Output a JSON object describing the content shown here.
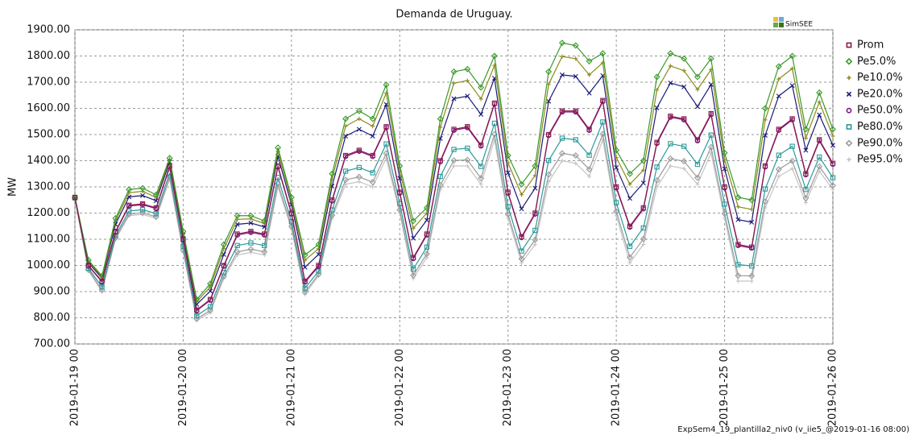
{
  "chart_data": {
    "type": "line",
    "title": "Demanda de Uruguay.",
    "ylabel": "MW",
    "logo": "SimSEE",
    "footer": "ExpSem4_19_plantilla2_niv0 (v_iie5_@2019-01-16 08:00)",
    "grid": true,
    "legend": "right",
    "x": [
      "2019-01-19 00",
      "2019-01-19 03",
      "2019-01-19 06",
      "2019-01-19 09",
      "2019-01-19 12",
      "2019-01-19 15",
      "2019-01-19 18",
      "2019-01-19 21",
      "2019-01-20 00",
      "2019-01-20 03",
      "2019-01-20 06",
      "2019-01-20 09",
      "2019-01-20 12",
      "2019-01-20 15",
      "2019-01-20 18",
      "2019-01-20 21",
      "2019-01-21 00",
      "2019-01-21 03",
      "2019-01-21 06",
      "2019-01-21 09",
      "2019-01-21 12",
      "2019-01-21 15",
      "2019-01-21 18",
      "2019-01-21 21",
      "2019-01-22 00",
      "2019-01-22 03",
      "2019-01-22 06",
      "2019-01-22 09",
      "2019-01-22 12",
      "2019-01-22 15",
      "2019-01-22 18",
      "2019-01-22 21",
      "2019-01-23 00",
      "2019-01-23 03",
      "2019-01-23 06",
      "2019-01-23 09",
      "2019-01-23 12",
      "2019-01-23 15",
      "2019-01-23 18",
      "2019-01-23 21",
      "2019-01-24 00",
      "2019-01-24 03",
      "2019-01-24 06",
      "2019-01-24 09",
      "2019-01-24 12",
      "2019-01-24 15",
      "2019-01-24 18",
      "2019-01-24 21",
      "2019-01-25 00",
      "2019-01-25 03",
      "2019-01-25 06",
      "2019-01-25 09",
      "2019-01-25 12",
      "2019-01-25 15",
      "2019-01-25 18",
      "2019-01-25 21",
      "2019-01-26 00"
    ],
    "xticks": [
      "2019-01-19 00",
      "2019-01-20 00",
      "2019-01-21 00",
      "2019-01-22 00",
      "2019-01-23 00",
      "2019-01-24 00",
      "2019-01-25 00",
      "2019-01-26 00"
    ],
    "ylim": [
      700,
      1900
    ],
    "yticks": [
      {
        "value": 700,
        "label": "700.00"
      },
      {
        "value": 800,
        "label": "800.00"
      },
      {
        "value": 900,
        "label": "900.00"
      },
      {
        "value": 1000,
        "label": "1000.00"
      },
      {
        "value": 1100,
        "label": "1100.00"
      },
      {
        "value": 1200,
        "label": "1200.00"
      },
      {
        "value": 1300,
        "label": "1300.00"
      },
      {
        "value": 1400,
        "label": "1400.00"
      },
      {
        "value": 1500,
        "label": "1500.00"
      },
      {
        "value": 1600,
        "label": "1600.00"
      },
      {
        "value": 1700,
        "label": "1700.00"
      },
      {
        "value": 1800,
        "label": "1800.00"
      },
      {
        "value": 1900,
        "label": "1900.00"
      }
    ],
    "series": [
      {
        "name": "Prom",
        "color": "#8b1a4a",
        "marker": "square",
        "values": [
          1260,
          1000,
          940,
          1130,
          1230,
          1235,
          1220,
          1380,
          1100,
          830,
          870,
          1000,
          1120,
          1130,
          1120,
          1380,
          1200,
          940,
          1000,
          1250,
          1420,
          1440,
          1420,
          1530,
          1280,
          1030,
          1120,
          1400,
          1520,
          1530,
          1460,
          1620,
          1280,
          1110,
          1200,
          1500,
          1590,
          1590,
          1520,
          1630,
          1300,
          1150,
          1220,
          1470,
          1570,
          1560,
          1480,
          1580,
          1300,
          1080,
          1070,
          1380,
          1520,
          1560,
          1350,
          1480,
          1390
        ]
      },
      {
        "name": "Pe5.0%",
        "color": "#3a9a2a",
        "marker": "diamond",
        "values": [
          1260,
          1020,
          960,
          1180,
          1290,
          1295,
          1270,
          1410,
          1130,
          870,
          930,
          1080,
          1190,
          1190,
          1170,
          1450,
          1260,
          1040,
          1080,
          1350,
          1560,
          1590,
          1560,
          1690,
          1380,
          1170,
          1220,
          1560,
          1740,
          1750,
          1680,
          1800,
          1420,
          1310,
          1380,
          1740,
          1850,
          1840,
          1780,
          1810,
          1440,
          1350,
          1400,
          1720,
          1810,
          1790,
          1720,
          1790,
          1430,
          1260,
          1250,
          1600,
          1760,
          1800,
          1520,
          1660,
          1520
        ]
      },
      {
        "name": "Pe10.0%",
        "color": "#8a8a1a",
        "marker": "plus",
        "values": [
          1260,
          1016,
          956,
          1170,
          1278,
          1283,
          1260,
          1404,
          1124,
          862,
          918,
          1064,
          1176,
          1178,
          1160,
          1436,
          1248,
          1020,
          1064,
          1330,
          1532,
          1560,
          1532,
          1658,
          1360,
          1142,
          1200,
          1528,
          1696,
          1706,
          1636,
          1764,
          1392,
          1270,
          1344,
          1692,
          1798,
          1790,
          1728,
          1774,
          1412,
          1310,
          1364,
          1670,
          1762,
          1744,
          1672,
          1748,
          1404,
          1224,
          1214,
          1556,
          1712,
          1752,
          1486,
          1624,
          1494
        ]
      },
      {
        "name": "Pe20.0%",
        "color": "#1a1a7a",
        "marker": "x",
        "values": [
          1260,
          1011,
          951,
          1157,
          1262,
          1267,
          1247,
          1396,
          1116,
          851,
          902,
          1042,
          1157,
          1162,
          1147,
          1417,
          1232,
          993,
          1042,
          1303,
          1494,
          1520,
          1494,
          1615,
          1333,
          1104,
          1173,
          1485,
          1637,
          1647,
          1577,
          1715,
          1354,
          1216,
          1295,
          1627,
          1728,
          1722,
          1658,
          1725,
          1374,
          1256,
          1315,
          1602,
          1697,
          1682,
          1607,
          1691,
          1369,
          1175,
          1165,
          1497,
          1647,
          1687,
          1440,
          1575,
          1459
        ]
      },
      {
        "name": "Pe50.0%",
        "color": "#7a1a8a",
        "marker": "circle",
        "values": [
          1258,
          998,
          937,
          1127,
          1227,
          1232,
          1217,
          1376,
          1097,
          827,
          867,
          997,
          1116,
          1126,
          1116,
          1376,
          1196,
          936,
          996,
          1246,
          1416,
          1436,
          1416,
          1526,
          1276,
          1026,
          1116,
          1396,
          1516,
          1526,
          1456,
          1616,
          1276,
          1106,
          1196,
          1496,
          1586,
          1586,
          1516,
          1626,
          1296,
          1146,
          1216,
          1466,
          1566,
          1556,
          1476,
          1576,
          1296,
          1076,
          1066,
          1376,
          1516,
          1556,
          1346,
          1476,
          1386
        ]
      },
      {
        "name": "Pe80.0%",
        "color": "#2a9a9a",
        "marker": "square",
        "values": [
          1258,
          989,
          918,
          1114,
          1208,
          1213,
          1198,
          1353,
          1073,
          808,
          843,
          973,
          1076,
          1086,
          1076,
          1336,
          1167,
          913,
          978,
          1212,
          1360,
          1374,
          1354,
          1464,
          1236,
          986,
          1070,
          1340,
          1443,
          1448,
          1378,
          1543,
          1225,
          1055,
          1134,
          1401,
          1486,
          1480,
          1421,
          1548,
          1240,
          1073,
          1143,
          1376,
          1465,
          1455,
          1386,
          1498,
          1234,
          1003,
          998,
          1292,
          1421,
          1455,
          1290,
          1414,
          1335
        ]
      },
      {
        "name": "Pe90.0%",
        "color": "#9a9a9a",
        "marker": "diamond",
        "values": [
          1256,
          983,
          906,
          1105,
          1196,
          1201,
          1186,
          1338,
          1058,
          796,
          828,
          958,
          1052,
          1062,
          1052,
          1312,
          1149,
          898,
          966,
          1191,
          1327,
          1338,
          1318,
          1428,
          1212,
          962,
          1044,
          1307,
          1401,
          1403,
          1333,
          1501,
          1195,
          1025,
          1098,
          1347,
          1428,
          1420,
          1367,
          1502,
          1206,
          1031,
          1101,
          1325,
          1408,
          1398,
          1335,
          1452,
          1198,
          961,
          960,
          1244,
          1367,
          1399,
          1257,
          1378,
          1305
        ]
      },
      {
        "name": "Pe95.0%",
        "color": "#c4c4c4",
        "marker": "plus",
        "values": [
          1255,
          980,
          900,
          1100,
          1190,
          1195,
          1180,
          1330,
          1050,
          790,
          820,
          950,
          1040,
          1050,
          1040,
          1300,
          1140,
          890,
          960,
          1180,
          1310,
          1320,
          1300,
          1410,
          1200,
          950,
          1030,
          1290,
          1380,
          1380,
          1310,
          1480,
          1180,
          1010,
          1080,
          1320,
          1400,
          1390,
          1340,
          1480,
          1190,
          1010,
          1080,
          1300,
          1380,
          1370,
          1310,
          1430,
          1180,
          940,
          940,
          1220,
          1340,
          1370,
          1240,
          1360,
          1290
        ]
      }
    ]
  }
}
